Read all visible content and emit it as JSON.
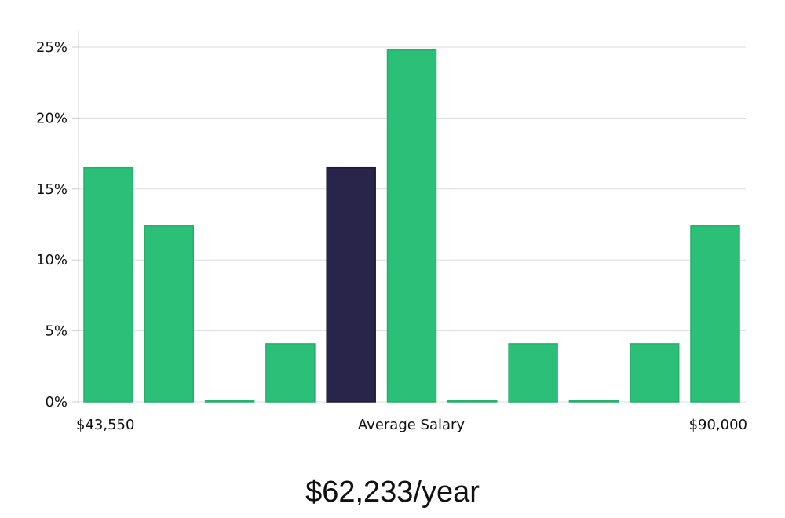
{
  "chart_data": {
    "type": "bar",
    "values": [
      16.5,
      12.4,
      0,
      4.1,
      16.5,
      24.8,
      0,
      4.1,
      0,
      4.1,
      12.4
    ],
    "highlight_index": 4,
    "ylim": [
      0,
      26
    ],
    "yticks": [
      0,
      5,
      10,
      15,
      20,
      25
    ],
    "ytick_labels": [
      "0%",
      "5%",
      "10%",
      "15%",
      "20%",
      "25%"
    ],
    "x_min_label": "$43,550",
    "x_center_label": "Average Salary",
    "x_max_label": "$90,000",
    "grid": true,
    "colors": {
      "bar": "#2bbf77",
      "bar_edge": "#22b06c",
      "highlight": "#28244a",
      "grid": "#dddddd",
      "axis": "#cccccc"
    }
  },
  "salary": "$62,233/year"
}
